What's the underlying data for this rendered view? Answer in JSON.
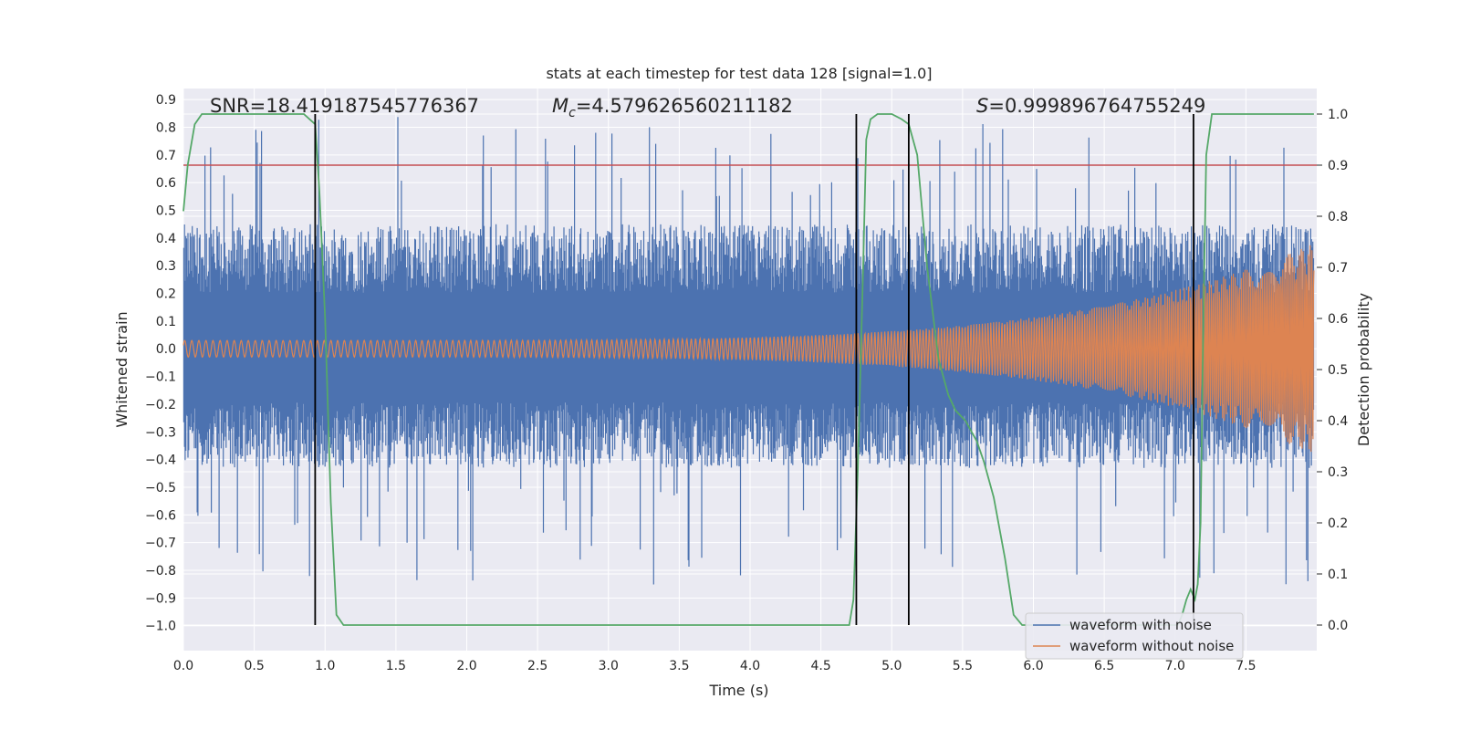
{
  "chart_data": {
    "type": "line",
    "title": "stats at each timestep for test data 128 [signal=1.0]",
    "xlabel": "Time (s)",
    "ylabel": "Whitened strain",
    "y2label": "Detection probability",
    "xlim": [
      0.0,
      8.0
    ],
    "ylim": [
      -1.09,
      0.94
    ],
    "y2lim": [
      -0.05,
      1.05
    ],
    "xticks": [
      0.0,
      0.5,
      1.0,
      1.5,
      2.0,
      2.5,
      3.0,
      3.5,
      4.0,
      4.5,
      5.0,
      5.5,
      6.0,
      6.5,
      7.0,
      7.5
    ],
    "yticks": [
      -1.0,
      -0.9,
      -0.8,
      -0.7,
      -0.6,
      -0.5,
      -0.4,
      -0.3,
      -0.2,
      -0.1,
      0.0,
      0.1,
      0.2,
      0.3,
      0.4,
      0.5,
      0.6,
      0.7,
      0.8,
      0.9
    ],
    "y2ticks": [
      0.0,
      0.1,
      0.2,
      0.3,
      0.4,
      0.5,
      0.6,
      0.7,
      0.8,
      0.9,
      1.0
    ],
    "annotations": {
      "snr": "SNR=18.419187545776367",
      "mc_symbol": "M",
      "mc_sub": "c",
      "mc_value": "=4.579626560211182",
      "s_symbol": "S",
      "s_value": "=0.999896764755249"
    },
    "series": [
      {
        "name": "waveform with noise",
        "color": "#4c72b0",
        "axis": "left",
        "description": "noisy whitened strain, roughly uniform envelope ~±0.45 with spikes to ±0.85",
        "envelope": {
          "base_upper": 0.45,
          "base_lower": -0.43,
          "max_upper": 0.85,
          "min_lower": -0.86
        }
      },
      {
        "name": "waveform without noise",
        "color": "#dd8452",
        "axis": "left",
        "description": "chirp signal, amplitude growing from 0.03 to ~0.38",
        "start_amplitude": 0.03,
        "end_amplitude": 0.38
      },
      {
        "name": "detection probability",
        "color": "#55a868",
        "axis": "right",
        "x": [
          0.0,
          0.03,
          0.08,
          0.13,
          0.85,
          0.93,
          0.96,
          1.0,
          1.04,
          1.08,
          1.13,
          1.5,
          4.5,
          4.7,
          4.73,
          4.76,
          4.8,
          4.82,
          4.85,
          4.9,
          5.0,
          5.07,
          5.12,
          5.18,
          5.25,
          5.33,
          5.4,
          5.45,
          5.52,
          5.6,
          5.65,
          5.72,
          5.8,
          5.86,
          5.92,
          6.5,
          6.98,
          7.02,
          7.05,
          7.08,
          7.11,
          7.14,
          7.16,
          7.18,
          7.2,
          7.22,
          7.26,
          7.3,
          7.98
        ],
        "values": [
          0.81,
          0.9,
          0.98,
          1.0,
          1.0,
          0.98,
          0.85,
          0.6,
          0.24,
          0.02,
          0.0,
          0.0,
          0.0,
          0.0,
          0.05,
          0.3,
          0.72,
          0.95,
          0.99,
          1.0,
          1.0,
          0.99,
          0.98,
          0.92,
          0.7,
          0.52,
          0.45,
          0.42,
          0.4,
          0.36,
          0.32,
          0.25,
          0.13,
          0.02,
          0.0,
          0.0,
          0.0,
          0.0,
          0.02,
          0.05,
          0.07,
          0.05,
          0.08,
          0.2,
          0.6,
          0.92,
          1.0,
          1.0,
          1.0
        ]
      }
    ],
    "threshold": {
      "value": 0.9,
      "axis": "right",
      "color": "#c44e52"
    },
    "event_lines": {
      "x": [
        0.93,
        4.75,
        5.12,
        7.13
      ],
      "y_range_right": [
        0.0,
        1.0
      ],
      "color": "#000000"
    },
    "legend": {
      "placement": "lower-right",
      "entries": [
        "waveform with noise",
        "waveform without noise"
      ]
    }
  }
}
